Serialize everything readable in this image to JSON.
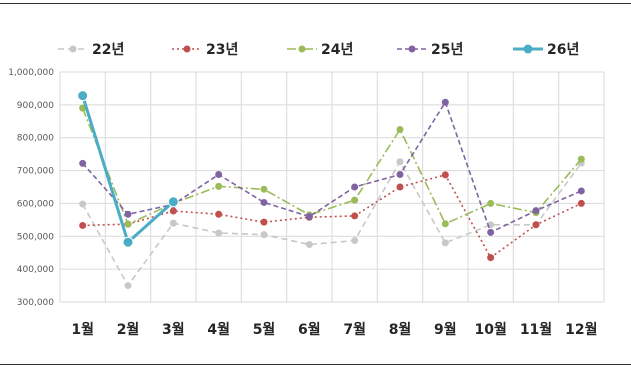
{
  "chart_data": {
    "type": "line",
    "title": "",
    "xlabel": "",
    "ylabel": "",
    "categories": [
      "1월",
      "2월",
      "3월",
      "4월",
      "5월",
      "6월",
      "7월",
      "8월",
      "9월",
      "10월",
      "11월",
      "12월"
    ],
    "ylim": [
      300000,
      1000000
    ],
    "yticks": [
      {
        "value": 300000,
        "label": "300,000"
      },
      {
        "value": 400000,
        "label": "400,000"
      },
      {
        "value": 500000,
        "label": "500,000"
      },
      {
        "value": 600000,
        "label": "600,000"
      },
      {
        "value": 700000,
        "label": "700,000"
      },
      {
        "value": 800000,
        "label": "800,000"
      },
      {
        "value": 900000,
        "label": "900,000"
      },
      {
        "value": 1000000,
        "label": "1,000,000"
      }
    ],
    "grid": true,
    "legend_position": "top",
    "series": [
      {
        "name": "22년",
        "color": "#c8c8c8",
        "dash": "6,4",
        "marker": "circle",
        "values": [
          598000,
          350000,
          540000,
          510000,
          505000,
          475000,
          487000,
          727000,
          480000,
          535000,
          535000,
          723000
        ]
      },
      {
        "name": "23년",
        "color": "#c0504d",
        "dash": "2,3",
        "marker": "circle",
        "values": [
          533000,
          537000,
          577000,
          567000,
          543000,
          558000,
          562000,
          650000,
          687000,
          435000,
          535000,
          600000
        ]
      },
      {
        "name": "24년",
        "color": "#9bbb59",
        "dash": "9,3,2,3",
        "marker": "circle",
        "values": [
          890000,
          537000,
          600000,
          652000,
          643000,
          565000,
          610000,
          825000,
          538000,
          600000,
          572000,
          735000
        ]
      },
      {
        "name": "25년",
        "color": "#8064a2",
        "dash": "5,3",
        "marker": "circle",
        "values": [
          722000,
          567000,
          597000,
          688000,
          603000,
          560000,
          650000,
          688000,
          908000,
          512000,
          578000,
          638000
        ]
      },
      {
        "name": "26년",
        "color": "#4bacc6",
        "dash": "",
        "marker": "circle",
        "thick": true,
        "values": [
          928000,
          482000,
          605000,
          null,
          null,
          null,
          null,
          null,
          null,
          null,
          null,
          null
        ]
      }
    ]
  }
}
